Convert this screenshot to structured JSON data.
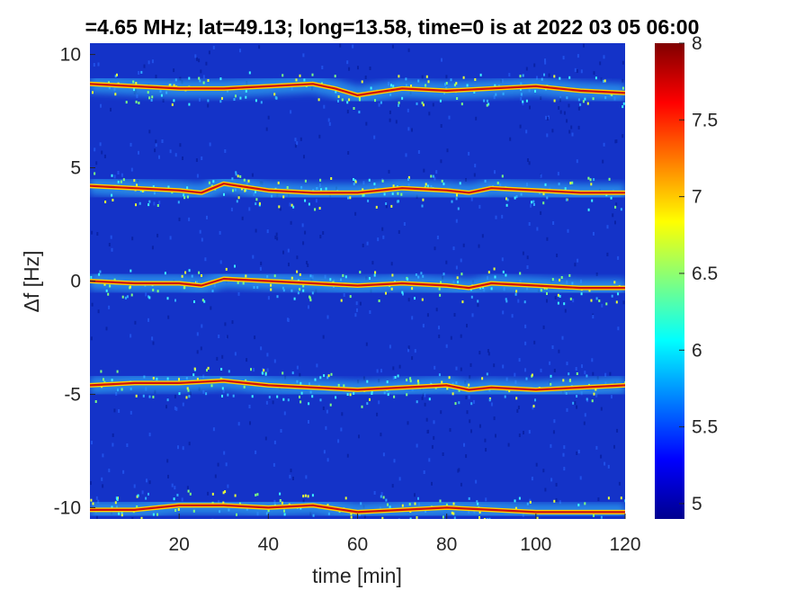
{
  "chart_data": {
    "type": "heatmap",
    "title": "=4.65 MHz;  lat=49.13; long=13.58, time=0 is at 2022 03 05 06:00",
    "xlabel": "time [min]",
    "ylabel": "Δf [Hz]",
    "xlim": [
      0,
      120
    ],
    "ylim": [
      -10.5,
      10.5
    ],
    "xticks": [
      "20",
      "40",
      "60",
      "80",
      "100",
      "120"
    ],
    "yticks": [
      "10",
      "5",
      "0",
      "-5",
      "-10"
    ],
    "colorbar": {
      "min": 4.9,
      "max": 8,
      "ticks": [
        "8",
        "7.5",
        "7",
        "6.5",
        "6",
        "5.5",
        "5"
      ],
      "colormap": "jet"
    },
    "grid": false,
    "traces": [
      {
        "name": "",
        "points": [
          [
            0,
            8.7
          ],
          [
            10,
            8.6
          ],
          [
            20,
            8.5
          ],
          [
            30,
            8.5
          ],
          [
            40,
            8.6
          ],
          [
            50,
            8.7
          ],
          [
            55,
            8.5
          ],
          [
            60,
            8.2
          ],
          [
            70,
            8.5
          ],
          [
            80,
            8.4
          ],
          [
            90,
            8.5
          ],
          [
            100,
            8.6
          ],
          [
            110,
            8.4
          ],
          [
            120,
            8.3
          ]
        ]
      },
      {
        "name": "",
        "points": [
          [
            0,
            4.2
          ],
          [
            10,
            4.1
          ],
          [
            20,
            4.0
          ],
          [
            25,
            3.9
          ],
          [
            30,
            4.3
          ],
          [
            40,
            4.0
          ],
          [
            50,
            3.9
          ],
          [
            60,
            3.9
          ],
          [
            70,
            4.1
          ],
          [
            80,
            4.0
          ],
          [
            85,
            3.9
          ],
          [
            90,
            4.1
          ],
          [
            100,
            4.0
          ],
          [
            110,
            3.9
          ],
          [
            120,
            3.9
          ]
        ]
      },
      {
        "name": "",
        "points": [
          [
            0,
            0.0
          ],
          [
            10,
            -0.1
          ],
          [
            20,
            -0.1
          ],
          [
            25,
            -0.2
          ],
          [
            30,
            0.1
          ],
          [
            40,
            0.0
          ],
          [
            50,
            -0.1
          ],
          [
            60,
            -0.2
          ],
          [
            70,
            -0.1
          ],
          [
            80,
            -0.2
          ],
          [
            85,
            -0.3
          ],
          [
            90,
            -0.1
          ],
          [
            100,
            -0.2
          ],
          [
            110,
            -0.3
          ],
          [
            120,
            -0.3
          ]
        ]
      },
      {
        "name": "",
        "points": [
          [
            0,
            -4.6
          ],
          [
            10,
            -4.5
          ],
          [
            20,
            -4.5
          ],
          [
            30,
            -4.4
          ],
          [
            40,
            -4.6
          ],
          [
            50,
            -4.7
          ],
          [
            60,
            -4.8
          ],
          [
            70,
            -4.7
          ],
          [
            80,
            -4.6
          ],
          [
            85,
            -4.8
          ],
          [
            90,
            -4.7
          ],
          [
            100,
            -4.8
          ],
          [
            110,
            -4.7
          ],
          [
            120,
            -4.6
          ]
        ]
      },
      {
        "name": "",
        "points": [
          [
            0,
            -10.1
          ],
          [
            10,
            -10.1
          ],
          [
            20,
            -9.9
          ],
          [
            30,
            -9.9
          ],
          [
            40,
            -10.0
          ],
          [
            50,
            -9.9
          ],
          [
            60,
            -10.2
          ],
          [
            70,
            -10.1
          ],
          [
            80,
            -10.0
          ],
          [
            90,
            -10.1
          ],
          [
            100,
            -10.2
          ],
          [
            110,
            -10.2
          ],
          [
            120,
            -10.2
          ]
        ]
      }
    ]
  }
}
